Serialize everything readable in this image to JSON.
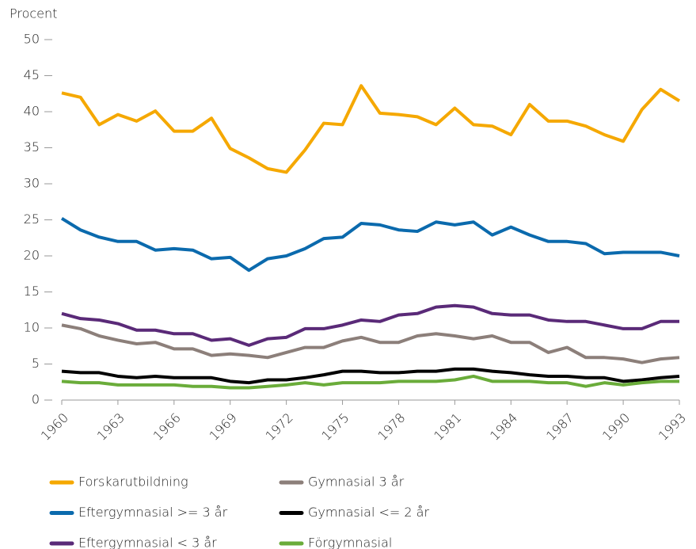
{
  "chart_data": {
    "type": "line",
    "y_label": "Procent",
    "x": [
      1960,
      1961,
      1962,
      1963,
      1964,
      1965,
      1966,
      1967,
      1968,
      1969,
      1970,
      1971,
      1972,
      1973,
      1974,
      1975,
      1976,
      1977,
      1978,
      1979,
      1980,
      1981,
      1982,
      1983,
      1984,
      1985,
      1986,
      1987,
      1988,
      1989,
      1990,
      1991,
      1992,
      1993
    ],
    "xlim": [
      1960,
      1993
    ],
    "xticks": [
      1960,
      1963,
      1966,
      1969,
      1972,
      1975,
      1978,
      1981,
      1984,
      1987,
      1990,
      1993
    ],
    "ylim": [
      0,
      50
    ],
    "yticks": [
      0,
      5,
      10,
      15,
      20,
      25,
      30,
      35,
      40,
      45,
      50
    ],
    "series": [
      {
        "name": "Forskarutbildning",
        "color": "#f5a800",
        "values": [
          42.6,
          42.0,
          38.2,
          39.6,
          38.7,
          40.1,
          37.3,
          37.3,
          39.1,
          34.9,
          33.6,
          32.1,
          31.6,
          34.7,
          38.4,
          38.2,
          43.6,
          39.8,
          39.6,
          39.3,
          38.2,
          40.5,
          38.2,
          38.0,
          36.8,
          41.0,
          38.7,
          38.7,
          38.0,
          36.8,
          35.9,
          40.3,
          43.1,
          41.5
        ]
      },
      {
        "name": "Eftergymnasial >= 3 år",
        "color": "#0b6aad",
        "values": [
          25.2,
          23.6,
          22.6,
          22.0,
          22.0,
          20.8,
          21.0,
          20.8,
          19.6,
          19.8,
          18.0,
          19.6,
          20.0,
          21.0,
          22.4,
          22.6,
          24.5,
          24.3,
          23.6,
          23.4,
          24.7,
          24.3,
          24.7,
          22.9,
          24.0,
          22.9,
          22.0,
          22.0,
          21.7,
          20.3,
          20.5,
          20.5,
          20.5,
          20.0
        ]
      },
      {
        "name": "Eftergymnasial < 3 år",
        "color": "#5a2a78",
        "values": [
          12.0,
          11.3,
          11.1,
          10.6,
          9.7,
          9.7,
          9.2,
          9.2,
          8.3,
          8.5,
          7.6,
          8.5,
          8.7,
          9.9,
          9.9,
          10.4,
          11.1,
          10.9,
          11.8,
          12.0,
          12.9,
          13.1,
          12.9,
          12.0,
          11.8,
          11.8,
          11.1,
          10.9,
          10.9,
          10.4,
          9.9,
          9.9,
          10.9,
          10.9
        ]
      },
      {
        "name": "Gymnasial 3 år",
        "color": "#8c7f7a",
        "values": [
          10.4,
          9.9,
          8.9,
          8.3,
          7.8,
          8.0,
          7.1,
          7.1,
          6.2,
          6.4,
          6.2,
          5.9,
          6.6,
          7.3,
          7.3,
          8.2,
          8.7,
          8.0,
          8.0,
          8.9,
          9.2,
          8.9,
          8.5,
          8.9,
          8.0,
          8.0,
          6.6,
          7.3,
          5.9,
          5.9,
          5.7,
          5.2,
          5.7,
          5.9
        ]
      },
      {
        "name": "Gymnasial <= 2 år",
        "color": "#000000",
        "values": [
          4.0,
          3.8,
          3.8,
          3.3,
          3.1,
          3.3,
          3.1,
          3.1,
          3.1,
          2.6,
          2.4,
          2.8,
          2.8,
          3.1,
          3.5,
          4.0,
          4.0,
          3.8,
          3.8,
          4.0,
          4.0,
          4.3,
          4.3,
          4.0,
          3.8,
          3.5,
          3.3,
          3.3,
          3.1,
          3.1,
          2.6,
          2.8,
          3.1,
          3.3
        ]
      },
      {
        "name": "Förgymnasial",
        "color": "#6aac3a",
        "values": [
          2.6,
          2.4,
          2.4,
          2.1,
          2.1,
          2.1,
          2.1,
          1.9,
          1.9,
          1.7,
          1.7,
          1.9,
          2.1,
          2.4,
          2.1,
          2.4,
          2.4,
          2.4,
          2.6,
          2.6,
          2.6,
          2.8,
          3.3,
          2.6,
          2.6,
          2.6,
          2.4,
          2.4,
          1.9,
          2.4,
          2.1,
          2.4,
          2.6,
          2.6
        ]
      }
    ]
  }
}
